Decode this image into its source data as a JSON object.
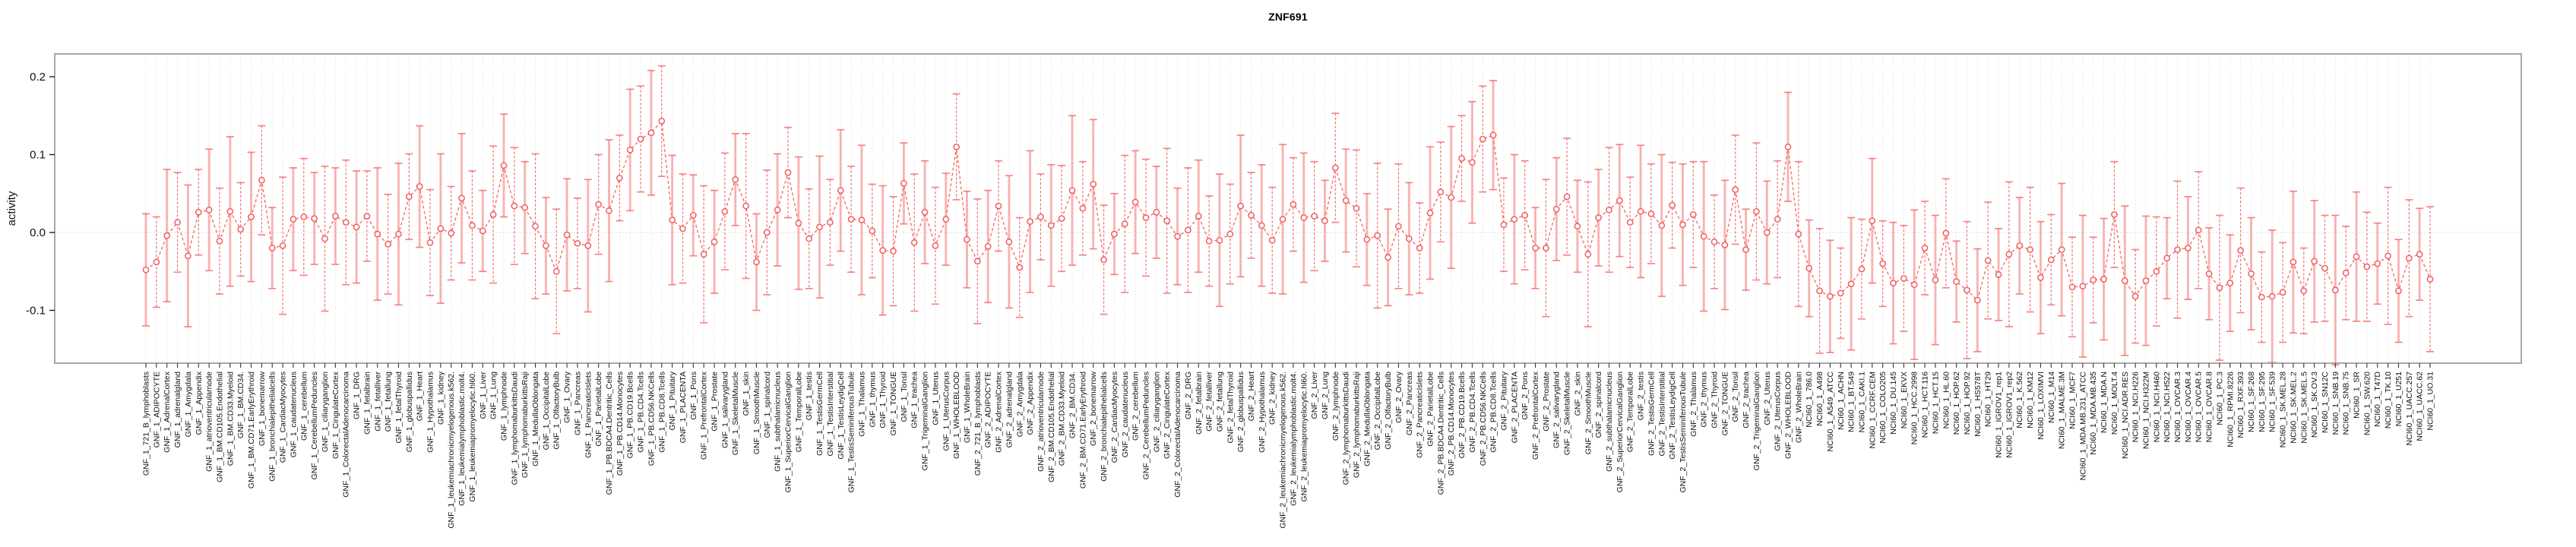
{
  "chart_data": {
    "type": "line",
    "title": "ZNF691",
    "ylabel": "activity",
    "yticks": [
      0.2,
      0.1,
      0.0,
      -0.1
    ],
    "ylim": [
      -0.168,
      0.229
    ],
    "grid": "vertical dotted line per sample, dotted horizontal line at zero",
    "legend_position": "none",
    "colors": {
      "point": "#f25d5d",
      "series_line": "#f4706d",
      "errorbar_solid": "#f8aeac",
      "errorbar_dashed": "#f4706d",
      "gridline": "#dcdcdc",
      "zero_line": "#cfcfcf",
      "box_border": "#a8a8a8",
      "axis_text": "#111111"
    },
    "samples": {
      "labels": [
        "GNF_1_721_B_lymphoblasts",
        "GNF_1_ADIPOCYTE",
        "GNF_1_AdrenalCortex",
        "GNF_1_adrenalgland",
        "GNF_1_Amygdala",
        "GNF_1_Appendix",
        "GNF_1_atrioventricularnode",
        "GNF_1_BM.CD105.Endothelial",
        "GNF_1_BM.CD33.Myeloid",
        "GNF_1_BM.CD34.",
        "GNF_1_BM.CD71.EarlyErythroid",
        "GNF_1_bonemarrow",
        "GNF_1_bronchialepithelialcells",
        "GNF_1_CardiacMyocytes",
        "GNF_1_caudatenucleus",
        "GNF_1_cerebellum",
        "GNF_1_CerebellumPeduncles",
        "GNF_1_ciliaryganglion",
        "GNF_1_CingulateCortex",
        "GNF_1_ColorectalAdenocarcinoma",
        "GNF_1_DRG",
        "GNF_1_fetalbrain",
        "GNF_1_fetalliver",
        "GNF_1_fetallung",
        "GNF_1_fetalThyroid",
        "GNF_1_globuspallidus",
        "GNF_1_Heart",
        "GNF_1_Hypothalamus",
        "GNF_1_kidney",
        "GNF_1_leukemiachronicmyelogenous.k562.",
        "GNF_1_leukemialymphoblastic.molt4.",
        "GNF_1_leukemiapromyelocytic.hl60.",
        "GNF_1_Liver",
        "GNF_1_Lung",
        "GNF_1_lymphnode",
        "GNF_1_lymphomaburkittsDaudi",
        "GNF_1_lymphomaburkittsRaji",
        "GNF_1_MedullaOblongata",
        "GNF_1_OccipitalLobe",
        "GNF_1_OlfactoryBulb",
        "GNF_1_Ovary",
        "GNF_1_Pancreas",
        "GNF_1_PancreaticIslets",
        "GNF_1_ParietalLobe",
        "GNF_1_PB.BDCA4.Dentritic_Cells",
        "GNF_1_PB.CD14.Monocytes",
        "GNF_1_PB.CD19.Bcells",
        "GNF_1_PB.CD4.Tcells",
        "GNF_1_PB.CD56.NKCells",
        "GNF_1_PB.CD8.Tcells",
        "GNF_1_Pituitary",
        "GNF_1_PLACENTA",
        "GNF_1_Pons",
        "GNF_1_PrefrontalCortex",
        "GNF_1_Prostate",
        "GNF_1_salivarygland",
        "GNF_1_SkeletalMuscle",
        "GNF_1_skin",
        "GNF_1_SmoothMuscle",
        "GNF_1_spinalcord",
        "GNF_1_subthalamicnucleus",
        "GNF_1_SuperiorCervicalGanglion",
        "GNF_1_TemporalLobe",
        "GNF_1_testis",
        "GNF_1_TestisGermCell",
        "GNF_1_TestisInterstitial",
        "GNF_1_TestisLeydigCell",
        "GNF_1_TestisSeminiferousTubule",
        "GNF_1_Thalamus",
        "GNF_1_thymus",
        "GNF_1_Thyroid",
        "GNF_1_TONGUE",
        "GNF_1_Tonsil",
        "GNF_1_trachea",
        "GNF_1_TrigeminalGanglion",
        "GNF_1_Uterus",
        "GNF_1_UterusCorpus",
        "GNF_1_WHOLEBLOOD",
        "GNF_1_WholeBrain",
        "GNF_2_721_B_lymphoblasts",
        "GNF_2_ADIPOCYTE",
        "GNF_2_AdrenalCortex",
        "GNF_2_adrenalgland",
        "GNF_2_Amygdala",
        "GNF_2_Appendix",
        "GNF_2_atrioventricularnode",
        "GNF_2_BM.CD105.Endothelial",
        "GNF_2_BM.CD33.Myeloid",
        "GNF_2_BM.CD34.",
        "GNF_2_BM.CD71.EarlyErythroid",
        "GNF_2_bonemarrow",
        "GNF_2_bronchialepithelialcells",
        "GNF_2_CardiacMyocytes",
        "GNF_2_caudatenucleus",
        "GNF_2_cerebellum",
        "GNF_2_CerebellumPeduncles",
        "GNF_2_ciliaryganglion",
        "GNF_2_CingulateCortex",
        "GNF_2_ColorectalAdenocarcinoma",
        "GNF_2_DRG",
        "GNF_2_fetalbrain",
        "GNF_2_fetalliver",
        "GNF_2_fetallung",
        "GNF_2_fetalThyroid",
        "GNF_2_globuspallidus",
        "GNF_2_Heart",
        "GNF_2_Hypothalamus",
        "GNF_2_kidney",
        "GNF_2_leukemiachronicmyelogenous.k562.",
        "GNF_2_leukemialymphoblastic.molt4.",
        "GNF_2_leukemiapromyelocytic.hl60.",
        "GNF_2_Liver",
        "GNF_2_Lung",
        "GNF_2_lymphnode",
        "GNF_2_lymphomaburkittsDaudi",
        "GNF_2_lymphomaburkittsRaji",
        "GNF_2_MedullaOblongata",
        "GNF_2_OccipitalLobe",
        "GNF_2_OlfactoryBulb",
        "GNF_2_Ovary",
        "GNF_2_Pancreas",
        "GNF_2_PancreaticIslets",
        "GNF_2_ParietalLobe",
        "GNF_2_PB.BDCA4.Dentritic_Cells",
        "GNF_2_PB.CD14.Monocytes",
        "GNF_2_PB.CD19.Bcells",
        "GNF_2_PB.CD4.Tcells",
        "GNF_2_PB.CD56.NKCells",
        "GNF_2_PB.CD8.Tcells",
        "GNF_2_Pituitary",
        "GNF_2_PLACENTA",
        "GNF_2_Pons",
        "GNF_2_PrefrontalCortex",
        "GNF_2_Prostate",
        "GNF_2_salivarygland",
        "GNF_2_SkeletalMuscle",
        "GNF_2_skin",
        "GNF_2_SmoothMuscle",
        "GNF_2_spinalcord",
        "GNF_2_subthalamicnucleus",
        "GNF_2_SuperiorCervicalGanglion",
        "GNF_2_TemporalLobe",
        "GNF_2_testis",
        "GNF_2_TestisGermCell",
        "GNF_2_TestisInterstitial",
        "GNF_2_TestisLeydigCell",
        "GNF_2_TestisSeminiferousTubule",
        "GNF_2_Thalamus",
        "GNF_2_thymus",
        "GNF_2_Thyroid",
        "GNF_2_TONGUE",
        "GNF_2_Tonsil",
        "GNF_2_trachea",
        "GNF_2_TrigeminalGanglion",
        "GNF_2_Uterus",
        "GNF_2_UterusCorpus",
        "GNF_2_WHOLEBLOOD",
        "GNF_2_WholeBrain",
        "NCI60_1_786.0",
        "NCI60_1_A498",
        "NCI60_1_A549_ATCC",
        "NCI60_1_ACHN",
        "NCI60_1_BT.549",
        "NCI60_1_CAKI.1",
        "NCI60_1_CCRF.CEM",
        "NCI60_1_COLO205",
        "NCI60_1_DU.145",
        "NCI60_1_EKVX",
        "NCI60_1_HCC.2998",
        "NCI60_1_HCT.116",
        "NCI60_1_HCT.15",
        "NCI60_1_HL.60",
        "NCI60_1_HOP.62",
        "NCI60_1_HOP.92",
        "NCI60_1_HS578T",
        "NCI60_1_HT29",
        "NCI60_1_IGROV1_rep1",
        "NCI60_1_IGROV1_rep2",
        "NCI60_1_K.562",
        "NCI60_1_KM12",
        "NCI60_1_LOXIMVI",
        "NCI60_1_M14",
        "NCI60_1_MALME.3M",
        "NCI60_1_MCF7",
        "NCI60_1_MDA.MB.231_ATCC",
        "NCI60_1_MDA.MB.435",
        "NCI60_1_MDA.N",
        "NCI60_1_MOLT.4",
        "NCI60_1_NCI.ADR.RES",
        "NCI60_1_NCI.H226",
        "NCI60_1_NCI.H322M",
        "NCI60_1_NCI.H460",
        "NCI60_1_NCI.H522",
        "NCI60_1_OVCAR.3",
        "NCI60_1_OVCAR.4",
        "NCI60_1_OVCAR.5",
        "NCI60_1_OVCAR.8",
        "NCI60_1_PC.3",
        "NCI60_1_RPMI.8226",
        "NCI60_1_RXF.393",
        "NCI60_1_SF.268",
        "NCI60_1_SF.295",
        "NCI60_1_SF.539",
        "NCI60_1_SK.MEL.28",
        "NCI60_1_SK.MEL.2",
        "NCI60_1_SK.MEL.5",
        "NCI60_1_SK.OV.3",
        "NCI60_1_SN12C",
        "NCI60_1_SNB.19",
        "NCI60_1_SNB.75",
        "NCI60_1_SR",
        "NCI60_1_SW.620",
        "NCI60_1_T47D",
        "NCI60_1_TK.10",
        "NCI60_1_U251",
        "NCI60_1_UACC.257",
        "NCI60_1_UACC.62",
        "NCI60_1_UO.31"
      ],
      "means": [
        -0.048,
        -0.038,
        -0.004,
        0.013,
        -0.03,
        0.026,
        0.029,
        -0.011,
        0.027,
        0.004,
        0.02,
        0.067,
        -0.02,
        -0.017,
        0.017,
        0.02,
        0.018,
        -0.008,
        0.021,
        0.013,
        0.007,
        0.021,
        -0.002,
        -0.015,
        -0.002,
        0.046,
        0.059,
        -0.013,
        0.005,
        -0.001,
        0.044,
        0.009,
        0.002,
        0.023,
        0.086,
        0.034,
        0.032,
        0.008,
        -0.017,
        -0.05,
        -0.003,
        -0.014,
        -0.017,
        0.036,
        0.028,
        0.07,
        0.106,
        0.12,
        0.128,
        0.143,
        0.016,
        0.005,
        0.022,
        -0.028,
        -0.012,
        0.027,
        0.068,
        0.034,
        -0.038,
        0.0,
        0.029,
        0.077,
        0.012,
        -0.008,
        0.007,
        0.013,
        0.054,
        0.017,
        0.016,
        0.002,
        -0.023,
        -0.024,
        0.063,
        -0.013,
        0.026,
        -0.017,
        0.017,
        0.11,
        -0.009,
        -0.037,
        -0.018,
        0.034,
        -0.012,
        -0.045,
        0.014,
        0.02,
        0.009,
        0.018,
        0.054,
        0.031,
        0.062,
        -0.035,
        -0.002,
        0.011,
        0.039,
        0.019,
        0.026,
        0.015,
        -0.005,
        0.003,
        0.021,
        -0.011,
        -0.01,
        -0.002,
        0.034,
        0.022,
        0.009,
        -0.01,
        0.017,
        0.036,
        0.019,
        0.021,
        0.015,
        0.083,
        0.041,
        0.031,
        -0.009,
        -0.004,
        -0.032,
        0.008,
        -0.008,
        -0.02,
        0.025,
        0.052,
        0.045,
        0.095,
        0.09,
        0.12,
        0.125,
        0.01,
        0.017,
        0.022,
        -0.02,
        -0.02,
        0.03,
        0.046,
        0.008,
        -0.028,
        0.019,
        0.029,
        0.041,
        0.013,
        0.027,
        0.024,
        0.009,
        0.035,
        0.01,
        0.023,
        -0.005,
        -0.012,
        -0.016,
        0.055,
        -0.022,
        0.027,
        0.0,
        0.017,
        0.11,
        -0.002,
        -0.046,
        -0.075,
        -0.082,
        -0.078,
        -0.066,
        -0.047,
        0.015,
        -0.04,
        -0.065,
        -0.059,
        -0.067,
        -0.02,
        -0.061,
        -0.001,
        -0.063,
        -0.074,
        -0.087,
        -0.036,
        -0.054,
        -0.028,
        -0.017,
        -0.022,
        -0.058,
        -0.035,
        -0.022,
        -0.07,
        -0.069,
        -0.061,
        -0.06,
        0.023,
        -0.062,
        -0.082,
        -0.062,
        -0.05,
        -0.033,
        -0.022,
        -0.02,
        0.003,
        -0.053,
        -0.071,
        -0.065,
        -0.023,
        -0.053,
        -0.083,
        -0.082,
        -0.077,
        -0.038,
        -0.075,
        -0.037,
        -0.046,
        -0.074,
        -0.052,
        -0.031,
        -0.044,
        -0.04,
        -0.03,
        -0.075,
        -0.033,
        -0.028,
        -0.06
      ],
      "errs": [
        0.072,
        0.058,
        0.085,
        0.064,
        0.091,
        0.055,
        0.078,
        0.068,
        0.096,
        0.06,
        0.083,
        0.07,
        0.052,
        0.088,
        0.066,
        0.075,
        0.059,
        0.093,
        0.062,
        0.08,
        0.072,
        0.058,
        0.085,
        0.064,
        0.091,
        0.055,
        0.078,
        0.068,
        0.096,
        0.06,
        0.083,
        0.07,
        0.052,
        0.088,
        0.066,
        0.075,
        0.059,
        0.093,
        0.062,
        0.08,
        0.072,
        0.058,
        0.085,
        0.064,
        0.091,
        0.055,
        0.078,
        0.068,
        0.08,
        0.071,
        0.083,
        0.07,
        0.052,
        0.088,
        0.066,
        0.075,
        0.059,
        0.093,
        0.062,
        0.08,
        0.072,
        0.058,
        0.085,
        0.064,
        0.091,
        0.055,
        0.078,
        0.068,
        0.096,
        0.06,
        0.083,
        0.07,
        0.052,
        0.088,
        0.066,
        0.075,
        0.059,
        0.068,
        0.062,
        0.08,
        0.072,
        0.058,
        0.085,
        0.064,
        0.091,
        0.055,
        0.078,
        0.068,
        0.096,
        0.06,
        0.083,
        0.07,
        0.052,
        0.088,
        0.066,
        0.075,
        0.059,
        0.093,
        0.062,
        0.08,
        0.072,
        0.058,
        0.085,
        0.064,
        0.091,
        0.055,
        0.078,
        0.068,
        0.096,
        0.06,
        0.083,
        0.07,
        0.052,
        0.07,
        0.066,
        0.075,
        0.059,
        0.093,
        0.062,
        0.08,
        0.072,
        0.058,
        0.085,
        0.064,
        0.091,
        0.055,
        0.078,
        0.068,
        0.07,
        0.06,
        0.083,
        0.07,
        0.052,
        0.088,
        0.066,
        0.075,
        0.059,
        0.093,
        0.062,
        0.08,
        0.072,
        0.058,
        0.085,
        0.064,
        0.091,
        0.055,
        0.078,
        0.068,
        0.096,
        0.06,
        0.083,
        0.07,
        0.052,
        0.088,
        0.066,
        0.075,
        0.07,
        0.093,
        0.062,
        0.08,
        0.072,
        0.058,
        0.085,
        0.064,
        0.08,
        0.055,
        0.078,
        0.068,
        0.096,
        0.06,
        0.083,
        0.07,
        0.052,
        0.088,
        0.066,
        0.075,
        0.059,
        0.093,
        0.062,
        0.08,
        0.072,
        0.058,
        0.085,
        0.064,
        0.091,
        0.055,
        0.078,
        0.068,
        0.096,
        0.06,
        0.083,
        0.07,
        0.052,
        0.088,
        0.066,
        0.075,
        0.059,
        0.093,
        0.062,
        0.08,
        0.072,
        0.058,
        0.085,
        0.064,
        0.091,
        0.055,
        0.078,
        0.068,
        0.096,
        0.06,
        0.083,
        0.07,
        0.052,
        0.088,
        0.066,
        0.075,
        0.059,
        0.093
      ]
    }
  }
}
